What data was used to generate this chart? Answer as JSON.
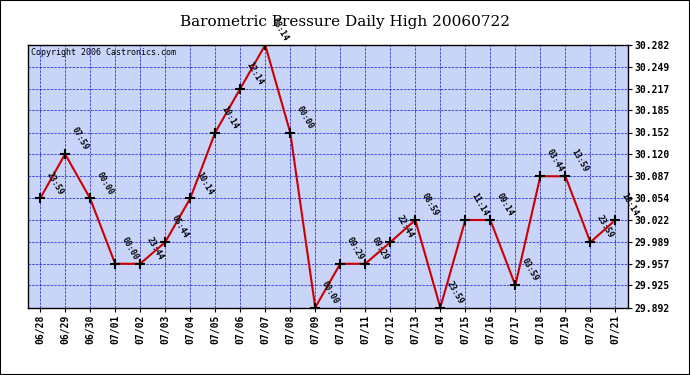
{
  "title": "Barometric Pressure Daily High 20060722",
  "copyright": "Copyright 2006 Castronics.com",
  "background_color": "#ffffff",
  "plot_bg_color": "#c8d4f8",
  "line_color": "#cc0000",
  "marker_color": "#000000",
  "grid_color": "#0000cc",
  "text_color": "#000000",
  "title_color": "#000000",
  "x_labels": [
    "06/28",
    "06/29",
    "06/30",
    "07/01",
    "07/02",
    "07/03",
    "07/04",
    "07/05",
    "07/06",
    "07/07",
    "07/08",
    "07/09",
    "07/10",
    "07/11",
    "07/12",
    "07/13",
    "07/14",
    "07/15",
    "07/16",
    "07/17",
    "07/18",
    "07/19",
    "07/20",
    "07/21"
  ],
  "y_values": [
    30.054,
    30.12,
    30.054,
    29.957,
    29.957,
    29.989,
    30.054,
    30.152,
    30.217,
    30.282,
    30.152,
    29.892,
    29.957,
    29.957,
    29.989,
    30.022,
    29.892,
    30.022,
    30.022,
    29.925,
    30.087,
    30.087,
    29.989,
    30.022
  ],
  "point_labels": [
    "23:59",
    "07:59",
    "00:00",
    "00:00",
    "23:44",
    "05:44",
    "10:14",
    "10:14",
    "12:14",
    "08:14",
    "00:00",
    "00:00",
    "09:29",
    "09:29",
    "22:44",
    "08:59",
    "23:59",
    "11:14",
    "09:14",
    "03:59",
    "03:44",
    "13:59",
    "23:59",
    "10:14"
  ],
  "ylim_min": 29.892,
  "ylim_max": 30.282,
  "ytick_values": [
    29.892,
    29.925,
    29.957,
    29.989,
    30.022,
    30.054,
    30.087,
    30.12,
    30.152,
    30.185,
    30.217,
    30.249,
    30.282
  ]
}
